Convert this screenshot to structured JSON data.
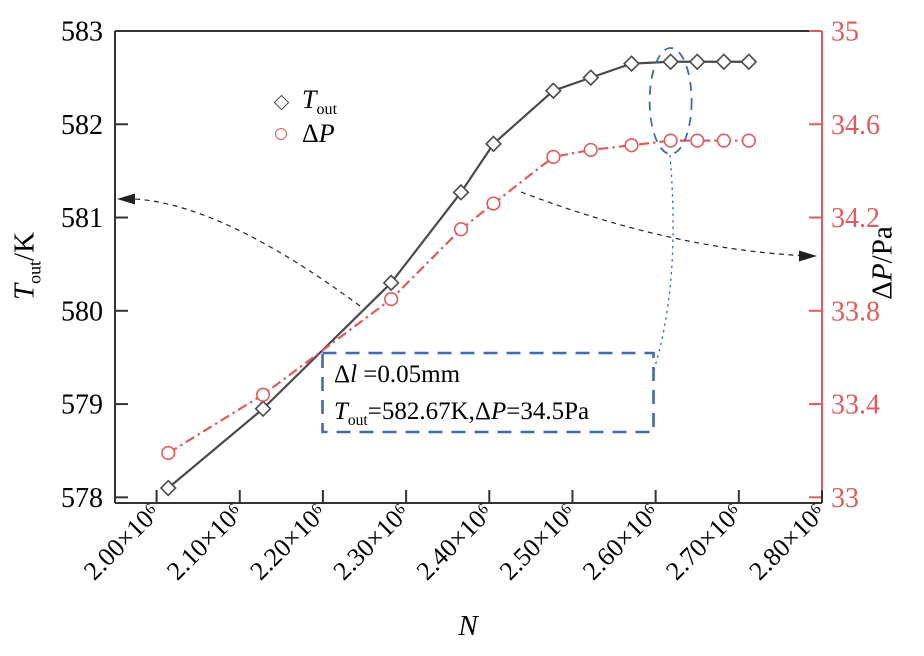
{
  "figure": {
    "background": "#ffffff",
    "title": ""
  },
  "colors": {
    "series_gray": "#4a4a4a",
    "series_red": "#e05c5c",
    "spine": "#333333",
    "annotation_blue": "#3f6cb0",
    "arrow_black": "#222222"
  },
  "axes": {
    "x": {
      "label": "N",
      "ticks": [
        "2.00×10⁶",
        "2.10×10⁶",
        "2.20×10⁶",
        "2.30×10⁶",
        "2.40×10⁶",
        "2.50×10⁶",
        "2.60×10⁶",
        "2.70×10⁶",
        "2.80×10⁶"
      ],
      "tick_values": [
        2.0,
        2.1,
        2.2,
        2.3,
        2.4,
        2.5,
        2.6,
        2.7,
        2.8
      ]
    },
    "y_left": {
      "var": "T",
      "sub": "out",
      "unit": "/K",
      "ticks": [
        "583",
        "582",
        "581",
        "580",
        "579",
        "578"
      ],
      "tick_values": [
        583,
        582,
        581,
        580,
        579,
        578
      ],
      "color": "#000000"
    },
    "y_right": {
      "pre": "Δ",
      "var": "P",
      "unit": "/Pa",
      "ticks": [
        "35",
        "34.6",
        "34.2",
        "33.8",
        "33.4",
        "33"
      ],
      "tick_values": [
        35,
        34.6,
        34.2,
        33.8,
        33.4,
        33
      ],
      "color": "#e05c5c"
    }
  },
  "legend": {
    "items": [
      {
        "marker": "diamond",
        "pre": "",
        "var": "T",
        "sub": "out"
      },
      {
        "marker": "circle",
        "pre": "Δ",
        "var": "P",
        "sub": ""
      }
    ]
  },
  "annotation": {
    "line1": {
      "sym": "Δ",
      "var": "l",
      "rest": " =0.05mm"
    },
    "line2": {
      "var1": "T",
      "sub1": "out",
      "mid": "=582.67K,Δ",
      "var2": "P",
      "rest": "=34.5Pa"
    },
    "border_color": "#3f6cb0"
  },
  "chart_data": {
    "type": "line",
    "title": "",
    "xlabel": "N",
    "ylabel_left": "T_out/K",
    "ylabel_right": "ΔP/Pa",
    "x_unit": "×10⁶",
    "xlim": [
      1.95,
      2.8
    ],
    "ylim_left": [
      577.95,
      583
    ],
    "ylim_right": [
      32.98,
      35
    ],
    "grid": false,
    "legend_position": "upper-left-inside",
    "x": [
      2.014,
      2.128,
      2.282,
      2.366,
      2.405,
      2.477,
      2.522,
      2.571,
      2.618,
      2.65,
      2.682,
      2.712
    ],
    "series": [
      {
        "name": "T_out",
        "axis": "left",
        "marker": "diamond",
        "line_style": "solid",
        "color": "#4a4a4a",
        "values": [
          578.1,
          578.95,
          580.3,
          581.27,
          581.79,
          582.36,
          582.5,
          582.65,
          582.67,
          582.67,
          582.67,
          582.67
        ]
      },
      {
        "name": "ΔP",
        "axis": "right",
        "marker": "circle",
        "line_style": "dash-dot",
        "color": "#e05c5c",
        "values": [
          33.19,
          33.44,
          33.85,
          34.15,
          34.26,
          34.46,
          34.49,
          34.51,
          34.53,
          34.53,
          34.53,
          34.53
        ]
      }
    ],
    "highlight": {
      "ellipse_at_x": 2.618,
      "color": "#3f6cb0"
    }
  }
}
